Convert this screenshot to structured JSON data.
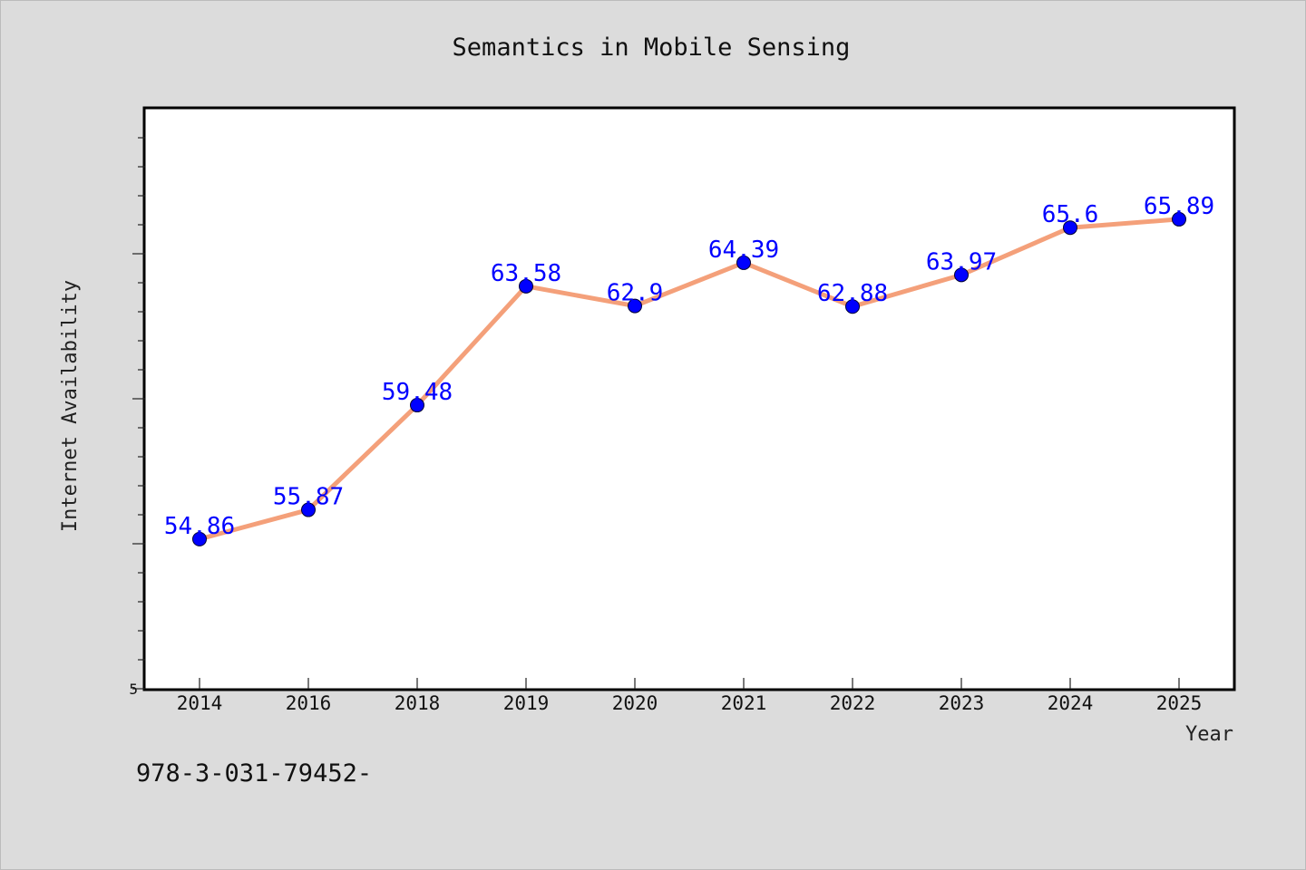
{
  "chart_data": {
    "type": "line",
    "title": "Semantics in Mobile Sensing",
    "xlabel": "Year",
    "ylabel": "Internet Availability",
    "categories": [
      "2014",
      "2016",
      "2018",
      "2019",
      "2020",
      "2021",
      "2022",
      "2023",
      "2024",
      "2025"
    ],
    "series": [
      {
        "values": [
          54.86,
          55.87,
          59.48,
          63.58,
          62.9,
          64.39,
          62.88,
          63.97,
          65.6,
          65.89
        ],
        "data_labels": [
          "54.86",
          "55.87",
          "59.48",
          "63.58",
          "62.9",
          "64.39",
          "62.88",
          "63.97",
          "65.6",
          "65.89"
        ],
        "line_color": "#f4a07a",
        "marker_color": "#0000ff"
      }
    ],
    "y_tick_labels": [
      "5"
    ],
    "ylim": [
      49.7,
      69.7
    ],
    "grid": false,
    "legend": "none"
  },
  "footnote": "978-3-031-79452-",
  "colors": {
    "background": "#dcdcdc",
    "plot_background": "#ffffff",
    "data_label": "#0000ff"
  }
}
